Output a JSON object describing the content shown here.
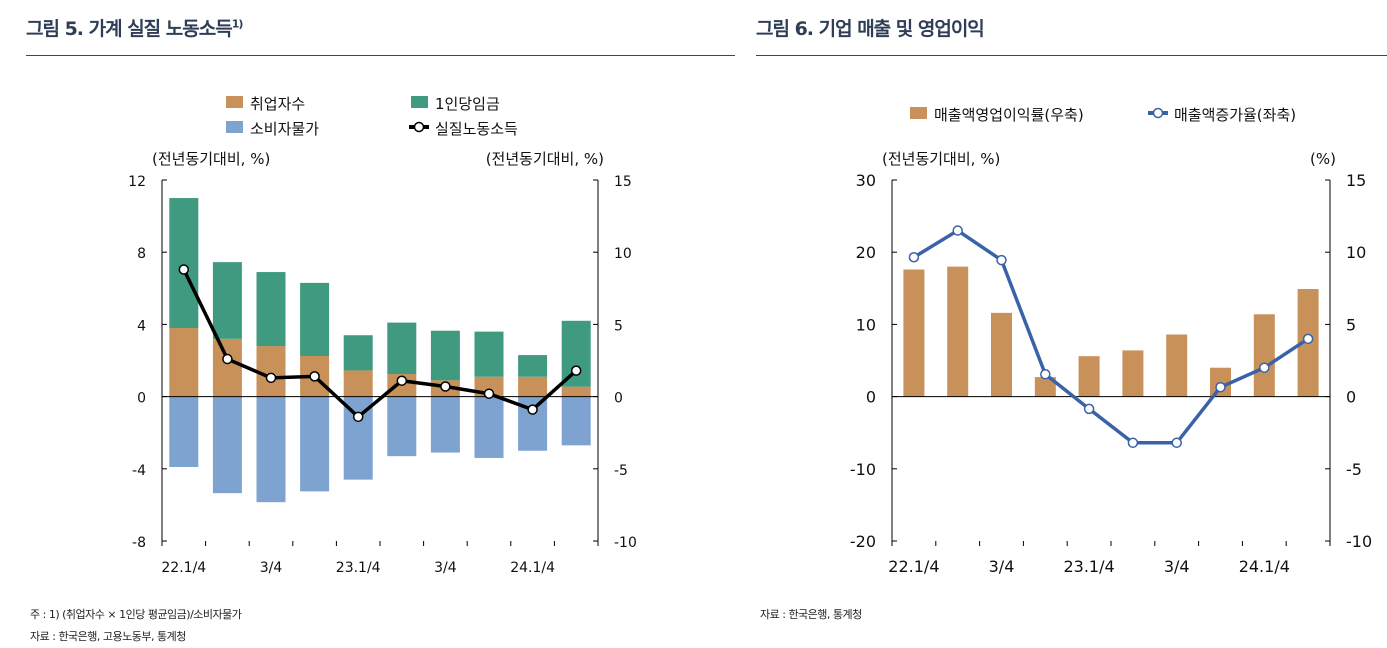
{
  "figures": [
    {
      "title": "그림 5. 가계 실질 노동소득",
      "title_sup": "1)",
      "notes": [
        "주 : 1) (취업자수 × 1인당 평균임금)/소비자물가",
        "자료 : 한국은행, 고용노동부, 통계청"
      ]
    },
    {
      "title": "그림 6. 기업 매출 및 영업이익",
      "notes": [
        "자료 : 한국은행, 통계청"
      ]
    }
  ],
  "chart_data": [
    {
      "type": "bar",
      "stacked": true,
      "categories": [
        "22.1/4",
        "",
        "3/4",
        "",
        "23.1/4",
        "",
        "3/4",
        "",
        "24.1/4",
        ""
      ],
      "ylabel_left": "(전년동기대비, %)",
      "ylabel_right": "(전년동기대비, %)",
      "ylim_left": [
        -8,
        12
      ],
      "yticks_left": [
        12,
        8,
        4,
        0,
        -4,
        -8
      ],
      "ylim_right": [
        -10,
        15
      ],
      "yticks_right": [
        15,
        10,
        5,
        0,
        -5,
        -10
      ],
      "legend_position": "top",
      "series": [
        {
          "name": "취업자수",
          "axis": "left",
          "kind": "bar",
          "color": "#c8915a",
          "values": [
            3.8,
            3.2,
            2.8,
            2.25,
            1.45,
            1.25,
            0.9,
            1.1,
            1.1,
            0.55
          ]
        },
        {
          "name": "1인당임금",
          "axis": "left",
          "kind": "bar",
          "color": "#3f9a7f",
          "values": [
            7.2,
            4.25,
            4.1,
            4.05,
            1.95,
            2.85,
            2.75,
            2.5,
            1.2,
            3.65
          ]
        },
        {
          "name": "소비자물가",
          "axis": "left",
          "kind": "bar",
          "color": "#7ea3d0",
          "values": [
            -3.9,
            -5.35,
            -5.85,
            -5.25,
            -4.6,
            -3.3,
            -3.1,
            -3.4,
            -3.0,
            -2.7
          ]
        },
        {
          "name": "실질노동소득",
          "axis": "right",
          "kind": "line",
          "color": "#000000",
          "values": [
            8.8,
            2.6,
            1.3,
            1.4,
            -1.4,
            1.1,
            0.7,
            0.2,
            -0.9,
            1.8
          ]
        }
      ]
    },
    {
      "type": "bar",
      "categories": [
        "22.1/4",
        "",
        "3/4",
        "",
        "23.1/4",
        "",
        "3/4",
        "",
        "24.1/4",
        ""
      ],
      "ylabel_left": "(전년동기대비, %)",
      "ylabel_right": "(%)",
      "ylim_left": [
        -20,
        30
      ],
      "yticks_left": [
        30,
        20,
        10,
        0,
        -10,
        -20
      ],
      "ylim_right": [
        -10,
        15
      ],
      "yticks_right": [
        15,
        10,
        5,
        0,
        -5,
        -10
      ],
      "legend_position": "top",
      "series": [
        {
          "name": "매출액영업이익률(우축)",
          "axis": "right",
          "kind": "bar",
          "color": "#c8915a",
          "values": [
            8.8,
            9.0,
            5.8,
            1.35,
            2.8,
            3.2,
            4.3,
            2.0,
            5.7,
            7.45
          ]
        },
        {
          "name": "매출액증가율(좌축)",
          "axis": "left",
          "kind": "line",
          "color": "#3a62a8",
          "values": [
            19.3,
            23.0,
            18.9,
            3.1,
            -1.7,
            -6.4,
            -6.4,
            1.3,
            4.0,
            8.0
          ]
        }
      ]
    }
  ]
}
